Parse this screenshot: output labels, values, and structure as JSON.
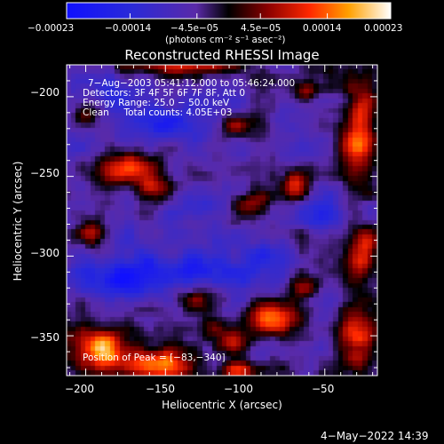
{
  "chart_data": {
    "type": "heatmap",
    "title": "Reconstructed RHESSI Image",
    "xlabel": "Heliocentric X (arcsec)",
    "ylabel": "Heliocentric Y (arcsec)",
    "xlim": [
      -212,
      -17
    ],
    "ylim": [
      -375,
      -180
    ],
    "xticks": [
      -200,
      -150,
      -100,
      -50
    ],
    "xtick_labels": [
      "−200",
      "−150",
      "−100",
      "−50"
    ],
    "yticks": [
      -200,
      -250,
      -300,
      -350
    ],
    "ytick_labels": [
      "−200",
      "−250",
      "−300",
      "−350"
    ],
    "colorbar": {
      "range": [
        -0.00023,
        0.00023
      ],
      "ticks": [
        -0.00023,
        -0.00014,
        -4.5e-05,
        4.5e-05,
        0.00014,
        0.00023
      ],
      "tick_labels": [
        "−0.00023",
        "−0.00014",
        "−4.5e−05",
        "4.5e−05",
        "0.00014",
        "0.00023"
      ],
      "units_label": "(photons cm⁻² s⁻¹ asec⁻²)"
    },
    "annotations": [
      "7−Aug−2003 05:41:12.000 to 05:46:24.000",
      "Detectors: 3F 4F 5F 6F 7F 8F, Att 0",
      "Energy Range: 25.0 − 50.0 keV",
      "Clean     Total counts: 4.05E+03",
      "Position of Peak = [−83,−340]"
    ],
    "peak": [
      -83,
      -340
    ],
    "blobs": [
      {
        "x": -82,
        "y": -340,
        "sx": 12,
        "sy": 7,
        "amp": 0.00023
      },
      {
        "x": -108,
        "y": -355,
        "sx": 8,
        "sy": 6,
        "amp": 0.00017
      },
      {
        "x": -190,
        "y": -358,
        "sx": 14,
        "sy": 11,
        "amp": 0.00022
      },
      {
        "x": -155,
        "y": -368,
        "sx": 14,
        "sy": 7,
        "amp": 0.0002
      },
      {
        "x": -172,
        "y": -245,
        "sx": 12,
        "sy": 8,
        "amp": 0.00018
      },
      {
        "x": -140,
        "y": -180,
        "sx": 24,
        "sy": 5,
        "amp": 0.00016
      },
      {
        "x": -28,
        "y": -222,
        "sx": 8,
        "sy": 22,
        "amp": 0.0002
      },
      {
        "x": -25,
        "y": -300,
        "sx": 6,
        "sy": 10,
        "amp": 0.00016
      },
      {
        "x": -30,
        "y": -355,
        "sx": 9,
        "sy": 12,
        "amp": 0.00018
      },
      {
        "x": -68,
        "y": -255,
        "sx": 6,
        "sy": 6,
        "amp": 0.00014
      },
      {
        "x": -62,
        "y": -198,
        "sx": 5,
        "sy": 5,
        "amp": 0.00013
      },
      {
        "x": -105,
        "y": -218,
        "sx": 6,
        "sy": 5,
        "amp": 0.00012
      },
      {
        "x": -96,
        "y": -267,
        "sx": 9,
        "sy": 5,
        "amp": 0.00012
      },
      {
        "x": -200,
        "y": -212,
        "sx": 6,
        "sy": 6,
        "amp": 0.00011
      },
      {
        "x": -158,
        "y": -258,
        "sx": 7,
        "sy": 6,
        "amp": 0.00012
      },
      {
        "x": -128,
        "y": -325,
        "sx": 10,
        "sy": 6,
        "amp": 0.0001
      },
      {
        "x": -65,
        "y": -320,
        "sx": 7,
        "sy": 5,
        "amp": 0.00011
      },
      {
        "x": -195,
        "y": -285,
        "sx": 6,
        "sy": 7,
        "amp": 0.0001
      },
      {
        "x": -105,
        "y": -372,
        "sx": 10,
        "sy": 4,
        "amp": 0.00014
      },
      {
        "x": -120,
        "y": -345,
        "sx": 6,
        "sy": 5,
        "amp": 0.00012
      },
      {
        "x": -130,
        "y": -312,
        "sx": 34,
        "sy": 9,
        "amp": -0.00013
      },
      {
        "x": -178,
        "y": -314,
        "sx": 14,
        "sy": 12,
        "amp": -0.00012
      },
      {
        "x": -150,
        "y": -215,
        "sx": 12,
        "sy": 9,
        "amp": -0.0001
      },
      {
        "x": -125,
        "y": -268,
        "sx": 14,
        "sy": 8,
        "amp": -9e-05
      },
      {
        "x": -180,
        "y": -200,
        "sx": 8,
        "sy": 7,
        "amp": -8e-05
      },
      {
        "x": -88,
        "y": -300,
        "sx": 12,
        "sy": 6,
        "amp": -9e-05
      },
      {
        "x": -50,
        "y": -275,
        "sx": 10,
        "sy": 8,
        "amp": -8e-05
      }
    ]
  },
  "footer": {
    "timestamp": "4−May−2022 14:39"
  }
}
